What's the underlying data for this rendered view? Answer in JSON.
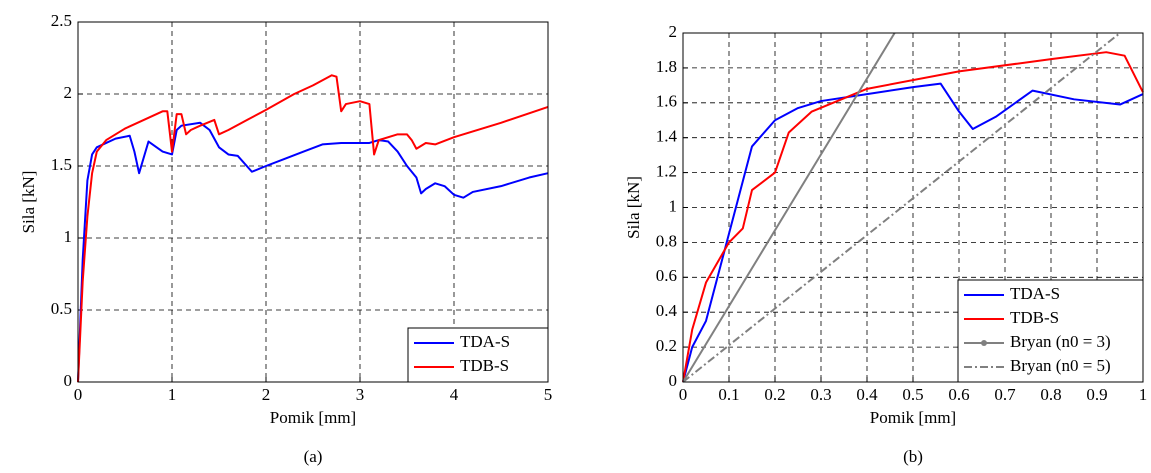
{
  "chart_data": [
    {
      "type": "line",
      "panel_label": "(a)",
      "xlabel": "Pomik [mm]",
      "ylabel": "Sila [kN]",
      "xlim": [
        0,
        5
      ],
      "xticks": [
        0,
        1,
        2,
        3,
        4,
        5
      ],
      "ylim": [
        0,
        2.5
      ],
      "yticks": [
        0,
        0.5,
        1,
        1.5,
        2,
        2.5
      ],
      "grid": true,
      "legend": "lower right",
      "series": [
        {
          "name": "TDA-S",
          "color": "#0000ff",
          "linestyle": "solid",
          "x": [
            0,
            0.05,
            0.1,
            0.15,
            0.2,
            0.3,
            0.4,
            0.55,
            0.6,
            0.65,
            0.75,
            0.9,
            1.0,
            1.05,
            1.1,
            1.3,
            1.4,
            1.5,
            1.6,
            1.7,
            1.85,
            2.0,
            2.2,
            2.4,
            2.6,
            2.8,
            3.0,
            3.1,
            3.2,
            3.3,
            3.4,
            3.5,
            3.6,
            3.65,
            3.7,
            3.8,
            3.9,
            4.0,
            4.1,
            4.2,
            4.5,
            4.8,
            5.0
          ],
          "values": [
            0,
            0.85,
            1.4,
            1.58,
            1.63,
            1.66,
            1.69,
            1.71,
            1.6,
            1.45,
            1.67,
            1.6,
            1.58,
            1.75,
            1.78,
            1.8,
            1.75,
            1.63,
            1.58,
            1.57,
            1.46,
            1.5,
            1.55,
            1.6,
            1.65,
            1.66,
            1.66,
            1.66,
            1.68,
            1.67,
            1.6,
            1.5,
            1.42,
            1.31,
            1.34,
            1.38,
            1.36,
            1.3,
            1.28,
            1.32,
            1.36,
            1.42,
            1.45
          ]
        },
        {
          "name": "TDB-S",
          "color": "#ff0000",
          "linestyle": "solid",
          "x": [
            0,
            0.05,
            0.1,
            0.15,
            0.2,
            0.3,
            0.5,
            0.7,
            0.9,
            0.95,
            1.0,
            1.05,
            1.1,
            1.15,
            1.2,
            1.3,
            1.45,
            1.5,
            1.6,
            1.8,
            2.0,
            2.3,
            2.5,
            2.7,
            2.75,
            2.8,
            2.85,
            3.0,
            3.1,
            3.15,
            3.2,
            3.4,
            3.5,
            3.55,
            3.6,
            3.7,
            3.8,
            4.0,
            4.5,
            5.0
          ],
          "values": [
            0,
            0.7,
            1.15,
            1.45,
            1.6,
            1.68,
            1.76,
            1.82,
            1.88,
            1.88,
            1.6,
            1.86,
            1.86,
            1.72,
            1.75,
            1.78,
            1.82,
            1.72,
            1.75,
            1.82,
            1.89,
            2.0,
            2.06,
            2.13,
            2.12,
            1.88,
            1.93,
            1.95,
            1.93,
            1.58,
            1.68,
            1.72,
            1.72,
            1.68,
            1.62,
            1.66,
            1.65,
            1.7,
            1.8,
            1.91
          ]
        }
      ]
    },
    {
      "type": "line",
      "panel_label": "(b)",
      "xlabel": "Pomik [mm]",
      "ylabel": "Sila [kN]",
      "xlim": [
        0,
        1
      ],
      "xticks": [
        0,
        0.1,
        0.2,
        0.3,
        0.4,
        0.5,
        0.6,
        0.7,
        0.8,
        0.9,
        1
      ],
      "ylim": [
        0,
        2
      ],
      "yticks": [
        0,
        0.2,
        0.4,
        0.6,
        0.8,
        1,
        1.2,
        1.4,
        1.6,
        1.8,
        2
      ],
      "grid": true,
      "legend": "lower right",
      "series": [
        {
          "name": "TDA-S",
          "color": "#0000ff",
          "linestyle": "solid",
          "x": [
            0,
            0.02,
            0.05,
            0.1,
            0.15,
            0.2,
            0.25,
            0.3,
            0.4,
            0.5,
            0.56,
            0.6,
            0.63,
            0.68,
            0.76,
            0.85,
            0.95,
            1.0
          ],
          "values": [
            0,
            0.2,
            0.35,
            0.85,
            1.35,
            1.5,
            1.57,
            1.61,
            1.65,
            1.69,
            1.71,
            1.55,
            1.45,
            1.52,
            1.67,
            1.62,
            1.59,
            1.65
          ]
        },
        {
          "name": "TDB-S",
          "color": "#ff0000",
          "linestyle": "solid",
          "x": [
            0,
            0.02,
            0.05,
            0.1,
            0.13,
            0.15,
            0.2,
            0.23,
            0.28,
            0.4,
            0.6,
            0.8,
            0.92,
            0.96,
            1.0
          ],
          "values": [
            0,
            0.3,
            0.57,
            0.8,
            0.88,
            1.1,
            1.2,
            1.43,
            1.55,
            1.68,
            1.78,
            1.85,
            1.89,
            1.87,
            1.66
          ]
        },
        {
          "name": "Bryan (n0 = 3)",
          "color": "#808080",
          "linestyle": "solid-marker",
          "x": [
            0,
            0.46
          ],
          "values": [
            0,
            2
          ]
        },
        {
          "name": "Bryan (n0 = 5)",
          "color": "#808080",
          "linestyle": "dashdot",
          "x": [
            0,
            0.95
          ],
          "values": [
            0,
            2
          ]
        }
      ]
    }
  ]
}
